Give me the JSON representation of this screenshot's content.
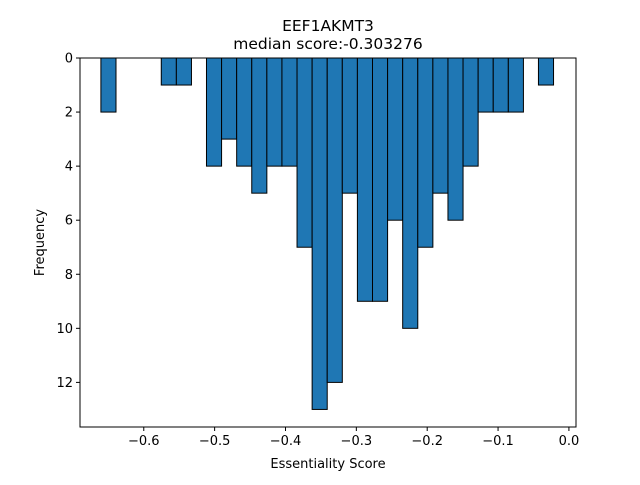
{
  "chart_data": {
    "type": "bar",
    "subtype": "histogram",
    "title": "EEF1AKMT3",
    "subtitle": "median score:-0.303276",
    "xlabel": "Essentiality Score",
    "ylabel": "Frequency",
    "y_axis_inverted": true,
    "xlim": [
      -0.69,
      0.01
    ],
    "ylim": [
      0,
      13.65
    ],
    "bin_width": 0.0213,
    "xticks": [
      -0.6,
      -0.5,
      -0.4,
      -0.3,
      -0.2,
      -0.1,
      0.0
    ],
    "xtick_labels": [
      "−0.6",
      "−0.5",
      "−0.4",
      "−0.3",
      "−0.2",
      "−0.1",
      "0.0"
    ],
    "yticks": [
      0,
      2,
      4,
      6,
      8,
      10,
      12
    ],
    "ytick_labels": [
      "0",
      "2",
      "4",
      "6",
      "8",
      "10",
      "12"
    ],
    "bins": [
      {
        "x0": -0.6605,
        "value": 2
      },
      {
        "x0": -0.5753,
        "value": 1
      },
      {
        "x0": -0.554,
        "value": 1
      },
      {
        "x0": -0.5115,
        "value": 4
      },
      {
        "x0": -0.4902,
        "value": 3
      },
      {
        "x0": -0.4689,
        "value": 4
      },
      {
        "x0": -0.4476,
        "value": 5
      },
      {
        "x0": -0.4263,
        "value": 4
      },
      {
        "x0": -0.405,
        "value": 4
      },
      {
        "x0": -0.3837,
        "value": 7
      },
      {
        "x0": -0.3624,
        "value": 13
      },
      {
        "x0": -0.3411,
        "value": 12
      },
      {
        "x0": -0.3198,
        "value": 5
      },
      {
        "x0": -0.2985,
        "value": 9
      },
      {
        "x0": -0.2772,
        "value": 9
      },
      {
        "x0": -0.2559,
        "value": 6
      },
      {
        "x0": -0.2346,
        "value": 10
      },
      {
        "x0": -0.2133,
        "value": 7
      },
      {
        "x0": -0.192,
        "value": 5
      },
      {
        "x0": -0.1707,
        "value": 6
      },
      {
        "x0": -0.1494,
        "value": 4
      },
      {
        "x0": -0.1281,
        "value": 2
      },
      {
        "x0": -0.1068,
        "value": 2
      },
      {
        "x0": -0.0855,
        "value": 2
      },
      {
        "x0": -0.043,
        "value": 1
      }
    ],
    "bar_color": "#1f77b4",
    "edge_color": "#000000",
    "grid": false,
    "legend": "none"
  }
}
